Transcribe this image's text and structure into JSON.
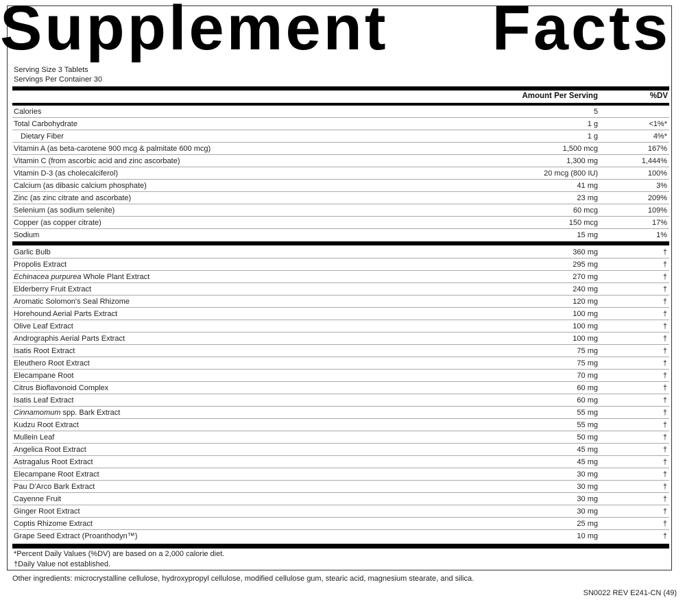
{
  "title": {
    "word1": "Supplement",
    "word2": "Facts"
  },
  "serving_size": "Serving Size 3 Tablets",
  "servings_per_container": "Servings Per Container 30",
  "header": {
    "amount": "Amount Per Serving",
    "dv": "%DV"
  },
  "nutrients": [
    {
      "name": "Calories",
      "amount": "5",
      "dv": ""
    },
    {
      "name": "Total Carbohydrate",
      "amount": "1 g",
      "dv": "<1%*"
    },
    {
      "name": "Dietary Fiber",
      "amount": "1 g",
      "dv": "4%*",
      "indent": true
    },
    {
      "name": "Vitamin A (as beta-carotene 900 mcg & palmitate 600 mcg)",
      "amount": "1,500 mcg",
      "dv": "167%"
    },
    {
      "name": "Vitamin C (from ascorbic acid and zinc ascorbate)",
      "amount": "1,300 mg",
      "dv": "1,444%"
    },
    {
      "name": "Vitamin D-3 (as cholecalciferol)",
      "amount": "20 mcg (800 IU)",
      "dv": "100%"
    },
    {
      "name": "Calcium (as dibasic calcium phosphate)",
      "amount": "41 mg",
      "dv": "3%"
    },
    {
      "name": "Zinc (as zinc citrate and ascorbate)",
      "amount": "23 mg",
      "dv": "209%"
    },
    {
      "name": "Selenium (as sodium selenite)",
      "amount": "60 mcg",
      "dv": "109%"
    },
    {
      "name": "Copper (as copper citrate)",
      "amount": "150 mcg",
      "dv": "17%"
    },
    {
      "name": "Sodium",
      "amount": "15 mg",
      "dv": "1%"
    }
  ],
  "botanicals": [
    {
      "name": "Garlic Bulb",
      "amount": "360 mg",
      "dv": "†"
    },
    {
      "name": "Propolis Extract",
      "amount": "295 mg",
      "dv": "†"
    },
    {
      "italic": "Echinacea purpurea",
      "name": " Whole Plant Extract",
      "amount": "270 mg",
      "dv": "†"
    },
    {
      "name": "Elderberry Fruit Extract",
      "amount": "240 mg",
      "dv": "†"
    },
    {
      "name": "Aromatic Solomon's Seal Rhizome",
      "amount": "120 mg",
      "dv": "†"
    },
    {
      "name": "Horehound Aerial Parts Extract",
      "amount": "100 mg",
      "dv": "†"
    },
    {
      "name": "Olive Leaf Extract",
      "amount": "100 mg",
      "dv": "†"
    },
    {
      "name": "Andrographis Aerial Parts Extract",
      "amount": "100 mg",
      "dv": "†"
    },
    {
      "name": "Isatis Root Extract",
      "amount": "75 mg",
      "dv": "†"
    },
    {
      "name": "Eleuthero Root Extract",
      "amount": "75 mg",
      "dv": "†"
    },
    {
      "name": "Elecampane Root",
      "amount": "70 mg",
      "dv": "†"
    },
    {
      "name": "Citrus Bioflavonoid Complex",
      "amount": "60 mg",
      "dv": "†"
    },
    {
      "name": "Isatis Leaf Extract",
      "amount": "60 mg",
      "dv": "†"
    },
    {
      "italic": "Cinnamomum",
      "name": " spp. Bark Extract",
      "amount": "55 mg",
      "dv": "†"
    },
    {
      "name": "Kudzu Root Extract",
      "amount": "55 mg",
      "dv": "†"
    },
    {
      "name": "Mullein Leaf",
      "amount": "50 mg",
      "dv": "†"
    },
    {
      "name": "Angelica Root Extract",
      "amount": "45 mg",
      "dv": "†"
    },
    {
      "name": "Astragalus Root Extract",
      "amount": "45 mg",
      "dv": "†"
    },
    {
      "name": "Elecampane Root Extract",
      "amount": "30 mg",
      "dv": "†"
    },
    {
      "name": "Pau D'Arco Bark Extract",
      "amount": "30 mg",
      "dv": "†"
    },
    {
      "name": "Cayenne Fruit",
      "amount": "30 mg",
      "dv": "†"
    },
    {
      "name": "Ginger Root Extract",
      "amount": "30 mg",
      "dv": "†"
    },
    {
      "name": "Coptis Rhizome Extract",
      "amount": "25 mg",
      "dv": "†"
    },
    {
      "name": "Grape Seed Extract (Proanthodyn™)",
      "amount": "10 mg",
      "dv": "†"
    }
  ],
  "footnotes": {
    "dv_note": "*Percent Daily Values (%DV) are based on a 2,000 calorie diet.",
    "dagger_note": "†Daily Value not established."
  },
  "other_ingredients": "Other ingredients: microcrystalline cellulose, hydroxypropyl cellulose, modified cellulose gum, stearic acid, magnesium stearate, and silica.",
  "product_code": "SN0022 REV E241-CN (49)"
}
